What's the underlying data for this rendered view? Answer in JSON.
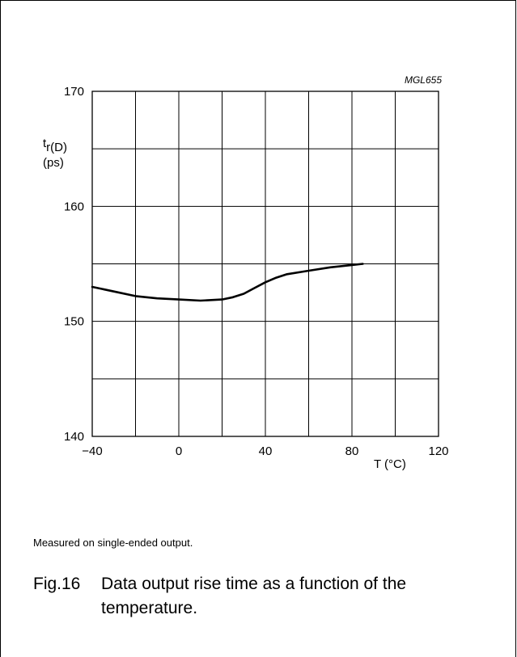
{
  "chart_data": {
    "type": "line",
    "code": "MGL655",
    "ylabel_main": "t",
    "ylabel_sub": "r(D)",
    "yunit": "(ps)",
    "xlabel": "T (°C)",
    "xlim": [
      -40,
      120
    ],
    "ylim": [
      140,
      170
    ],
    "x_ticks": [
      -40,
      0,
      40,
      80,
      120
    ],
    "x_tick_labels": [
      "−40",
      "0",
      "40",
      "80",
      "120"
    ],
    "y_ticks": [
      140,
      150,
      160,
      170
    ],
    "x_grid_step": 20,
    "y_grid_step": 5,
    "grid": true,
    "series": [
      {
        "x": [
          -40,
          -30,
          -20,
          -10,
          0,
          10,
          20,
          25,
          30,
          35,
          40,
          45,
          50,
          60,
          70,
          80,
          85
        ],
        "y": [
          153.0,
          152.6,
          152.2,
          152.0,
          151.9,
          151.8,
          151.9,
          152.1,
          152.4,
          152.9,
          153.4,
          153.8,
          154.1,
          154.4,
          154.7,
          154.9,
          155.0
        ]
      }
    ]
  },
  "note": "Measured on single-ended output.",
  "caption": {
    "number": "Fig.16",
    "text_line1": "Data output rise time as a function of the",
    "text_line2": "temperature."
  },
  "colors": {
    "line": "#000000",
    "grid": "#000000",
    "background": "#ffffff"
  }
}
